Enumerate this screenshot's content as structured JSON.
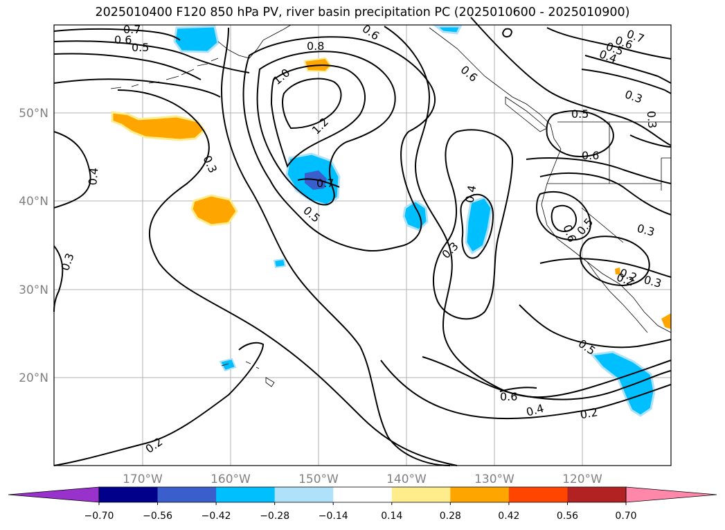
{
  "title": "2025010400 F120 850 hPa PV, river basin precipitation PC (2025010600 - 2025010900)",
  "lat_labels": [
    "50°N",
    "40°N",
    "30°N",
    "20°N"
  ],
  "lon_labels": [
    "170°W",
    "160°W",
    "150°W",
    "140°W",
    "130°W",
    "120°W"
  ],
  "contour_labels": [
    "0.7",
    "0.6",
    "0.5",
    "0.8",
    "1.0",
    "1.2",
    "0.6",
    "0.7",
    "0.5",
    "0.6",
    "0.4",
    "0.3",
    "0.7",
    "0.6",
    "0.5",
    "0.4",
    "0.3",
    "0.3",
    "0.5",
    "0.6",
    "0.6",
    "0.5",
    "0.3",
    "0.2",
    "0.3",
    "0.4",
    "0.3",
    "0.6",
    "0.5",
    "0.4",
    "0.2",
    "0.2",
    "0.3",
    "0.2"
  ],
  "colorbar": {
    "ticks": [
      "−0.70",
      "−0.56",
      "−0.42",
      "−0.28",
      "−0.14",
      "0.14",
      "0.28",
      "0.42",
      "0.56",
      "0.70"
    ],
    "colors": [
      "#9932cc",
      "#00008b",
      "#3a5fcd",
      "#00bfff",
      "#afe1fa",
      "#ffffff",
      "#ffec8b",
      "#ffa500",
      "#ff4500",
      "#b22222",
      "#ff88aa"
    ]
  }
}
